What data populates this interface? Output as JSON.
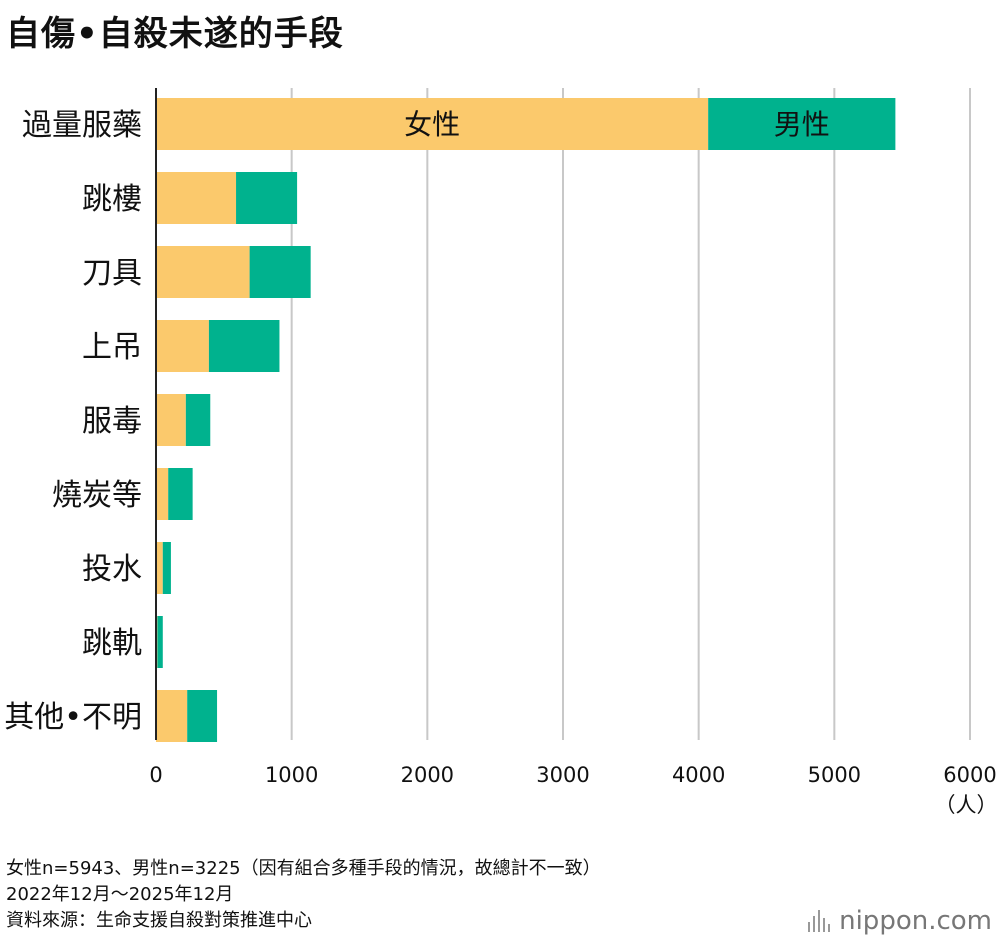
{
  "title": "自傷•自殺未遂的手段",
  "notes": [
    "女性n=5943、男性n=3225（因有組合多種手段的情況，故總計不一致）",
    "2022年12月～2025年12月",
    "資料來源：生命支援自殺對策推進中心"
  ],
  "brand": {
    "name": "nippon.com",
    "icon": "sound-bars-icon"
  },
  "chart_data": {
    "type": "bar",
    "orientation": "horizontal",
    "stacked": true,
    "categories": [
      "過量服藥",
      "跳樓",
      "刀具",
      "上吊",
      "服毒",
      "燒炭等",
      "投水",
      "跳軌",
      "其他•不明"
    ],
    "series": [
      {
        "name": "女性",
        "color": "#fbc96c",
        "values": [
          4070,
          590,
          690,
          390,
          220,
          90,
          50,
          10,
          230
        ]
      },
      {
        "name": "男性",
        "color": "#00b28e",
        "values": [
          1380,
          450,
          450,
          520,
          180,
          180,
          60,
          40,
          220
        ]
      }
    ],
    "xlim": [
      0,
      6000
    ],
    "xticks": [
      "0",
      "1000",
      "2000",
      "3000",
      "4000",
      "5000",
      "6000"
    ],
    "xunit": "（人）",
    "grid": true,
    "legend": "inline labels on first bar"
  }
}
